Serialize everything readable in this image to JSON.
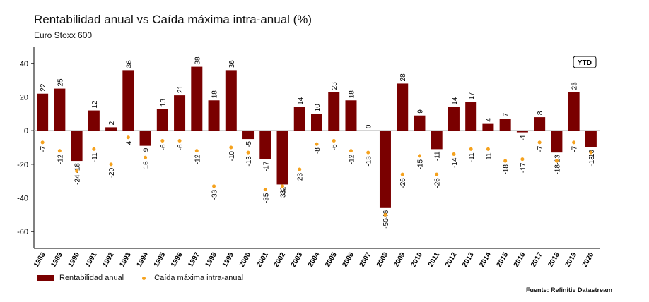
{
  "title": "Rentabilidad anual vs Caída máxima intra-anual (%)",
  "subtitle": "Euro Stoxx 600",
  "source": "Fuente: Refinitiv Datastream",
  "ytd_badge": "YTD",
  "legend": {
    "bar_label": "Rentabilidad anual",
    "dot_label": "Caída máxima intra-anual"
  },
  "colors": {
    "bar": "#7a0000",
    "dot": "#f5a21e",
    "axis": "#000000",
    "zero_line": "#bbbbbb"
  },
  "chart_data": {
    "type": "bar",
    "ylim": [
      -70,
      50
    ],
    "y_ticks": [
      40,
      20,
      0,
      -20,
      -40,
      -60
    ],
    "categories": [
      "1988",
      "1989",
      "1990",
      "1991",
      "1992",
      "1993",
      "1994",
      "1995",
      "1996",
      "1997",
      "1998",
      "1999",
      "2000",
      "2001",
      "2002",
      "2003",
      "2004",
      "2005",
      "2006",
      "2007",
      "2008",
      "2009",
      "2010",
      "2011",
      "2012",
      "2013",
      "2014",
      "2015",
      "2016",
      "2017",
      "2018",
      "2019",
      "2020"
    ],
    "series": [
      {
        "name": "Rentabilidad anual",
        "type": "bar",
        "values": [
          22,
          25,
          -18,
          12,
          2,
          36,
          -9,
          13,
          21,
          38,
          18,
          36,
          -5,
          -17,
          -32,
          14,
          10,
          23,
          18,
          0,
          -46,
          28,
          9,
          -11,
          14,
          17,
          4,
          7,
          -1,
          8,
          -13,
          23,
          -10
        ]
      },
      {
        "name": "Caída máxima intra-anual",
        "type": "scatter",
        "values": [
          -7,
          -12,
          -24,
          -11,
          -20,
          -4,
          -16,
          -6,
          -6,
          -12,
          -33,
          -10,
          -13,
          -35,
          -33,
          -23,
          -8,
          -6,
          -12,
          -13,
          -50,
          -26,
          -15,
          -26,
          -14,
          -11,
          -11,
          -18,
          -17,
          -7,
          -18,
          -7,
          -13
        ]
      }
    ]
  }
}
